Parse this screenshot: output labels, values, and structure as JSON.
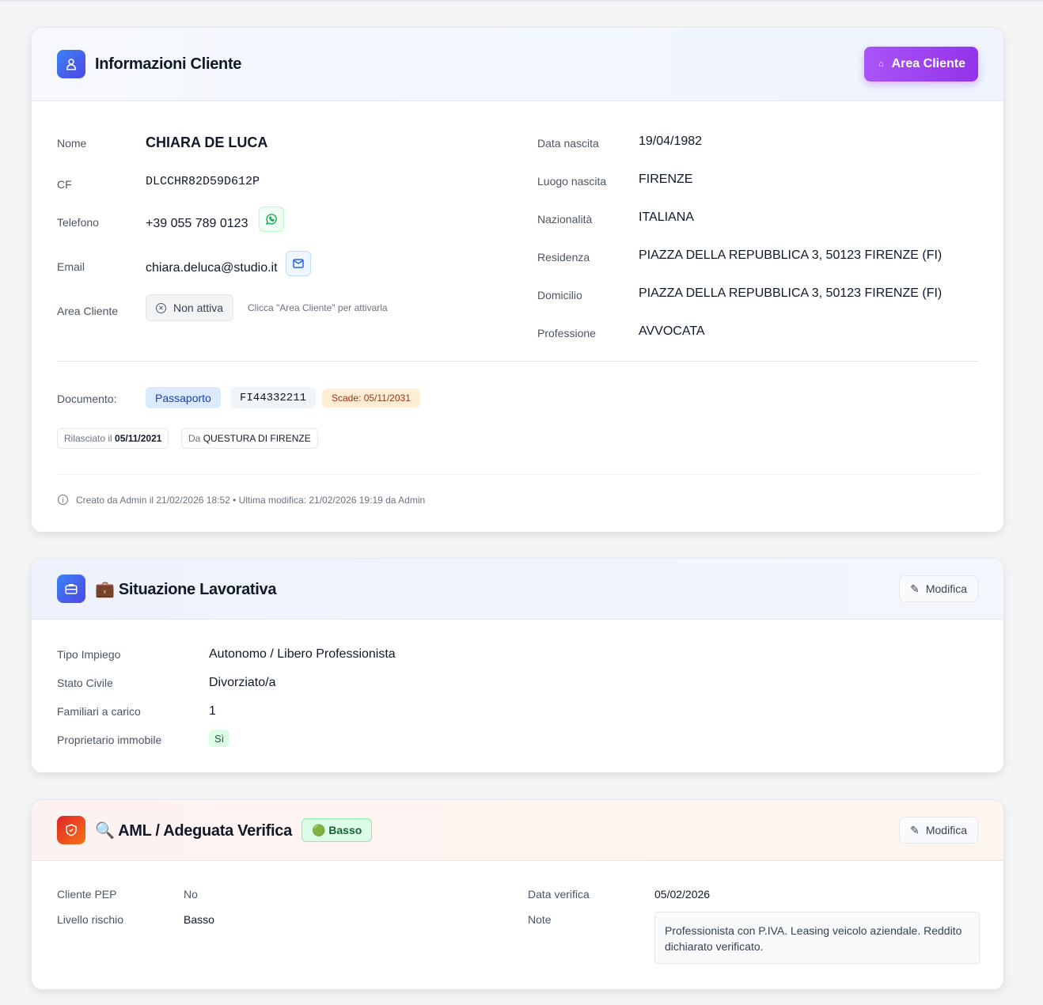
{
  "client_card": {
    "title": "Informazioni Cliente",
    "area_button": "Area Cliente",
    "left": [
      {
        "label": "Nome",
        "value": "CHIARA DE LUCA"
      },
      {
        "label": "CF",
        "value": "DLCCHR82D59D612P"
      },
      {
        "label": "Telefono",
        "value": "+39 055 789 0123"
      },
      {
        "label": "Email",
        "value": "chiara.deluca@studio.it"
      },
      {
        "label": "Area Cliente",
        "value": "Non attiva",
        "hint": "Clicca \"Area Cliente\" per attivarla"
      }
    ],
    "right": [
      {
        "label": "Data nascita",
        "value": "19/04/1982"
      },
      {
        "label": "Luogo nascita",
        "value": "FIRENZE"
      },
      {
        "label": "Nazionalità",
        "value": "ITALIANA"
      },
      {
        "label": "Residenza",
        "value": "PIAZZA DELLA REPUBBLICA 3, 50123 FIRENZE (FI)"
      },
      {
        "label": "Domicilio",
        "value": "PIAZZA DELLA REPUBBLICA 3, 50123 FIRENZE (FI)"
      },
      {
        "label": "Professione",
        "value": "AVVOCATA"
      }
    ],
    "document": {
      "label": "Documento:",
      "type": "Passaporto",
      "number": "FI44332211",
      "expiry": "Scade: 05/11/2031",
      "issued_prefix": "Rilasciato il",
      "issued_date": "05/11/2021",
      "by_prefix": "Da",
      "by": "QUESTURA DI FIRENZE"
    },
    "footer": "Creato da Admin il 21/02/2026 18:52 • Ultima modifica: 21/02/2026 19:19 da Admin"
  },
  "work_card": {
    "title": "💼 Situazione Lavorativa",
    "edit": "Modifica",
    "rows": [
      {
        "label": "Tipo Impiego",
        "value": "Autonomo / Libero Professionista"
      },
      {
        "label": "Stato Civile",
        "value": "Divorziato/a"
      },
      {
        "label": "Familiari a carico",
        "value": "1"
      },
      {
        "label": "Proprietario immobile",
        "value": "Sì"
      }
    ]
  },
  "aml_card": {
    "title": "🔍 AML / Adeguata Verifica",
    "badge": "🟢 Basso",
    "edit": "Modifica",
    "pep_label": "Cliente PEP",
    "pep": "No",
    "risk_label": "Livello rischio",
    "risk": "Basso",
    "date_label": "Data verifica",
    "date": "05/02/2026",
    "note_label": "Note",
    "note": "Professionista con P.IVA. Leasing veicolo aziendale. Reddito dichiarato verificato."
  },
  "colors": {
    "accent_purple": "#9333ea",
    "accent_blue": "#4f46e5",
    "aml_orange": "#ea580c"
  }
}
